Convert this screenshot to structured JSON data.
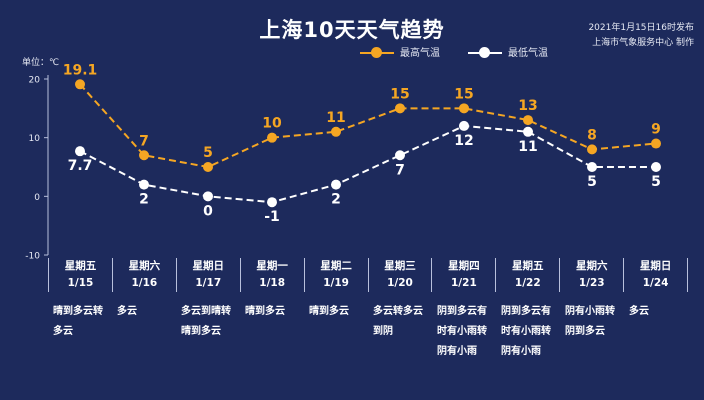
{
  "header": {
    "title": "上海10天天气趋势",
    "published": "2021年1月15日16时发布",
    "producer": "上海市气象服务中心 制作"
  },
  "unit_label": "单位：℃",
  "legend": {
    "high": "最高气温",
    "low": "最低气温"
  },
  "colors": {
    "background": "#1d2a5c",
    "high": "#f5a623",
    "low": "#ffffff",
    "axis": "#b8c0dc"
  },
  "days": [
    {
      "weekday": "星期五",
      "date": "1/15",
      "weather": "晴到多云转\n多云"
    },
    {
      "weekday": "星期六",
      "date": "1/16",
      "weather": "多云"
    },
    {
      "weekday": "星期日",
      "date": "1/17",
      "weather": "多云到晴转\n晴到多云"
    },
    {
      "weekday": "星期一",
      "date": "1/18",
      "weather": "晴到多云"
    },
    {
      "weekday": "星期二",
      "date": "1/19",
      "weather": "晴到多云"
    },
    {
      "weekday": "星期三",
      "date": "1/20",
      "weather": "多云转多云\n到阴"
    },
    {
      "weekday": "星期四",
      "date": "1/21",
      "weather": "阴到多云有\n时有小雨转\n阴有小雨"
    },
    {
      "weekday": "星期五",
      "date": "1/22",
      "weather": "阴到多云有\n时有小雨转\n阴有小雨"
    },
    {
      "weekday": "星期六",
      "date": "1/23",
      "weather": "阴有小雨转\n阴到多云"
    },
    {
      "weekday": "星期日",
      "date": "1/24",
      "weather": "多云"
    }
  ],
  "chart_data": {
    "type": "line",
    "categories": [
      "1/15",
      "1/16",
      "1/17",
      "1/18",
      "1/19",
      "1/20",
      "1/21",
      "1/22",
      "1/23",
      "1/24"
    ],
    "series": [
      {
        "name": "最高气温",
        "values": [
          19.1,
          7,
          5,
          10,
          11,
          15,
          15,
          13,
          8,
          9
        ]
      },
      {
        "name": "最低气温",
        "values": [
          7.7,
          2,
          0,
          -1,
          2,
          7,
          12,
          11,
          5,
          5
        ]
      }
    ],
    "ylim": [
      -10,
      20
    ],
    "yticks": [
      -10,
      0,
      10,
      20
    ],
    "ylabel": "单位：℃",
    "legend_position": "top",
    "grid": false
  }
}
